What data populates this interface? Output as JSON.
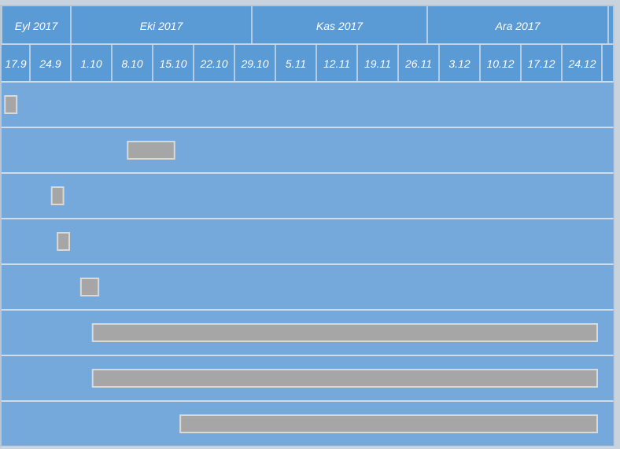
{
  "chart_data": {
    "type": "gantt",
    "title": "",
    "months": [
      "Eyl 2017",
      "Eki 2017",
      "Kas 2017",
      "Ara 2017"
    ],
    "weeks": [
      "17.9",
      "24.9",
      "1.10",
      "8.10",
      "15.10",
      "22.10",
      "29.10",
      "5.11",
      "12.11",
      "19.11",
      "26.11",
      "3.12",
      "10.12",
      "17.12",
      "24.12"
    ],
    "tasks": [
      {
        "start": "2017-09-17",
        "end": "2017-09-19"
      },
      {
        "start": "2017-10-08",
        "end": "2017-10-16"
      },
      {
        "start": "2017-09-25",
        "end": "2017-09-27"
      },
      {
        "start": "2017-09-26",
        "end": "2017-09-28"
      },
      {
        "start": "2017-09-30",
        "end": "2017-10-03"
      },
      {
        "start": "2017-10-02",
        "end": "2017-12-28"
      },
      {
        "start": "2017-10-02",
        "end": "2017-12-28"
      },
      {
        "start": "2017-10-17",
        "end": "2017-12-28"
      }
    ],
    "colors": {
      "header": "#5b9bd5",
      "row": "#75a9dc",
      "bar": "#a6a6a6",
      "bar_border": "#d9d9d9",
      "grid": "#d0dcea",
      "text": "#ffffff"
    }
  }
}
